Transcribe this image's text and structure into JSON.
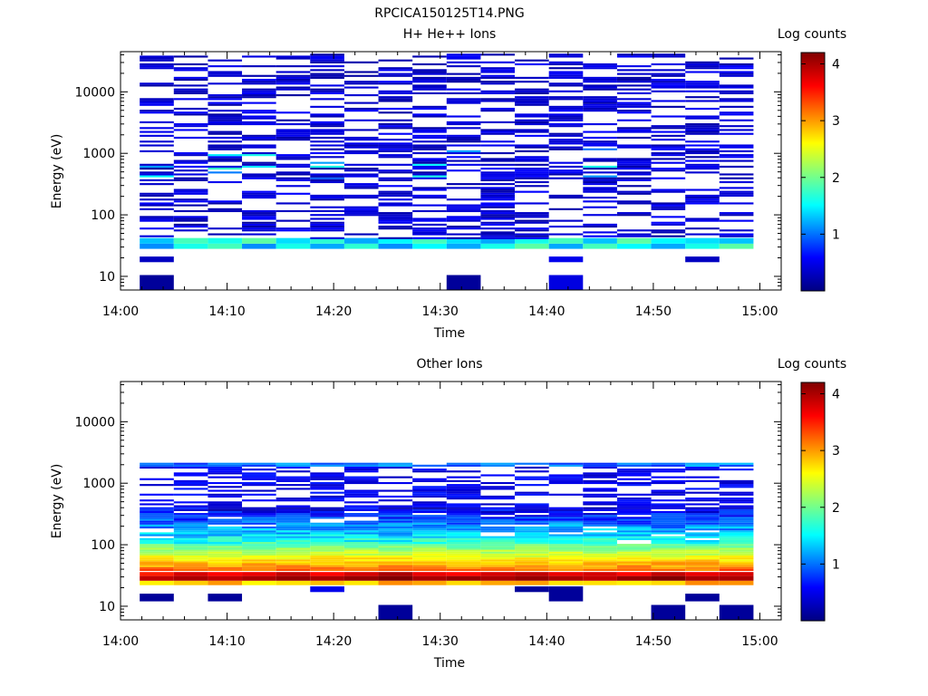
{
  "figure_title": "RPCICA150125T14.PNG",
  "colorscale": [
    "#000080",
    "#0000ff",
    "#00ffff",
    "#ffff00",
    "#ff0000",
    "#800000"
  ],
  "chart_data": [
    {
      "type": "heatmap",
      "title": "H+ He++ Ions",
      "xlabel": "Time",
      "ylabel": "Energy (eV)",
      "ylog": true,
      "ylim": [
        6,
        45000
      ],
      "xlim": [
        0,
        62
      ],
      "x_ticks": [
        0,
        10,
        20,
        30,
        40,
        50,
        60
      ],
      "x_tick_labels": [
        "14:00",
        "14:10",
        "14:20",
        "14:30",
        "14:40",
        "14:50",
        "15:00"
      ],
      "y_ticks": [
        10,
        100,
        1000,
        10000
      ],
      "y_tick_labels": [
        "10",
        "100",
        "1000",
        "10000"
      ],
      "colorbar_label": "Log counts",
      "colorbar_range": [
        0,
        4.2
      ],
      "colorbar_ticks": [
        1,
        2,
        3,
        4
      ],
      "colorbar_tick_labels": [
        "1",
        "2",
        "3",
        "4"
      ],
      "time_bins": [
        1.8,
        5,
        8.2,
        11.4,
        14.6,
        17.8,
        21,
        24.2,
        27.4,
        30.6,
        33.8,
        37,
        40.2,
        43.4,
        46.6,
        49.8,
        53,
        56.2,
        59.4
      ],
      "bins": [
        {
          "t0": 1.8,
          "t1": 5.0,
          "e0": 6,
          "e1": 10.5,
          "v": 0.12
        },
        {
          "t0": 30.6,
          "t1": 33.8,
          "e0": 6,
          "e1": 10.5,
          "v": 0.12
        },
        {
          "t0": 40.2,
          "t1": 43.4,
          "e0": 6,
          "e1": 10.5,
          "v": 0.45
        },
        {
          "t0": 1.8,
          "t1": 5.0,
          "e0": 17,
          "e1": 21,
          "v": 0.3
        },
        {
          "t0": 40.2,
          "t1": 43.4,
          "e0": 17,
          "e1": 21,
          "v": 0.5
        },
        {
          "t0": 53.0,
          "t1": 56.2,
          "e0": 17,
          "e1": 21,
          "v": 0.3
        }
      ],
      "band_values": [
        [
          1.1,
          1.6,
          1.8,
          1.1,
          1.6,
          1.2,
          1.7,
          1.1,
          1.5,
          1.2,
          1.6,
          1.9,
          1.2,
          1.8,
          1.5,
          1.2,
          1.6,
          1.9
        ],
        [
          1.3,
          1.8,
          1.6,
          1.9,
          1.4,
          1.7,
          1.2,
          1.5,
          1.8,
          1.4,
          1.2,
          1.6,
          1.8,
          1.3,
          1.9,
          1.5,
          1.4,
          1.3
        ]
      ]
    },
    {
      "type": "heatmap",
      "title": "Other Ions",
      "xlabel": "Time",
      "ylabel": "Energy (eV)",
      "ylog": true,
      "ylim": [
        6,
        45000
      ],
      "xlim": [
        0,
        62
      ],
      "x_ticks": [
        0,
        10,
        20,
        30,
        40,
        50,
        60
      ],
      "x_tick_labels": [
        "14:00",
        "14:10",
        "14:20",
        "14:30",
        "14:40",
        "14:50",
        "15:00"
      ],
      "y_ticks": [
        10,
        100,
        1000,
        10000
      ],
      "y_tick_labels": [
        "10",
        "100",
        "1000",
        "10000"
      ],
      "colorbar_label": "Log counts",
      "colorbar_range": [
        0,
        4.2
      ],
      "colorbar_ticks": [
        1,
        2,
        3,
        4
      ],
      "colorbar_tick_labels": [
        "1",
        "2",
        "3",
        "4"
      ],
      "time_bins": [
        1.8,
        5,
        8.2,
        11.4,
        14.6,
        17.8,
        21,
        24.2,
        27.4,
        30.6,
        33.8,
        37,
        40.2,
        43.4,
        46.6,
        49.8,
        53,
        56.2,
        59.4
      ],
      "bins": [
        {
          "t0": 1.8,
          "t1": 5.0,
          "e0": 12,
          "e1": 16,
          "v": 0.12
        },
        {
          "t0": 8.2,
          "t1": 11.4,
          "e0": 12,
          "e1": 16,
          "v": 0.12
        },
        {
          "t0": 17.8,
          "t1": 21.0,
          "e0": 17,
          "e1": 21,
          "v": 0.5
        },
        {
          "t0": 24.2,
          "t1": 27.4,
          "e0": 6,
          "e1": 10.5,
          "v": 0.12
        },
        {
          "t0": 37.0,
          "t1": 40.2,
          "e0": 17,
          "e1": 21,
          "v": 0.12
        },
        {
          "t0": 40.2,
          "t1": 43.4,
          "e0": 12,
          "e1": 21,
          "v": 0.12
        },
        {
          "t0": 49.8,
          "t1": 53.0,
          "e0": 6,
          "e1": 10.5,
          "v": 0.12
        },
        {
          "t0": 53.0,
          "t1": 56.2,
          "e0": 12,
          "e1": 16,
          "v": 0.12
        },
        {
          "t0": 56.2,
          "t1": 59.4,
          "e0": 6,
          "e1": 10.5,
          "v": 0.12
        }
      ],
      "band_values": [
        [
          1.9,
          2.2,
          1.5,
          2.1,
          2.4,
          1.9,
          2.3,
          2.5,
          1.8,
          2.0,
          2.4,
          2.2,
          1.9,
          2.3,
          2.6,
          2.0,
          2.3,
          1.8
        ],
        [
          3.9,
          4.0,
          3.9,
          4.0,
          4.1,
          4.0,
          4.1,
          4.2,
          4.0,
          4.1,
          4.0,
          4.1,
          4.0,
          3.9,
          4.1,
          4.2,
          4.0,
          4.0
        ],
        [
          3.2,
          3.5,
          3.3,
          3.4,
          3.6,
          3.3,
          3.5,
          3.7,
          3.4,
          3.3,
          3.5,
          3.6,
          3.4,
          3.5,
          3.3,
          3.6,
          3.4,
          3.5
        ]
      ]
    }
  ]
}
